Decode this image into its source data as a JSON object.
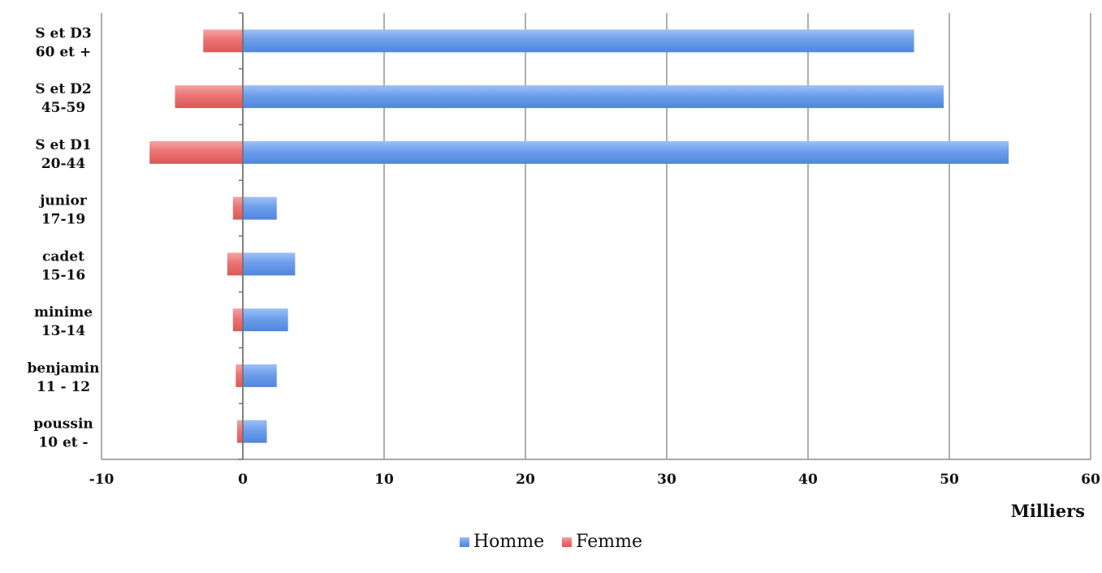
{
  "chart_data": {
    "type": "bar",
    "orientation": "horizontal",
    "stacked": true,
    "categories": [
      [
        "poussin",
        "10  et  -"
      ],
      [
        "benjamin",
        "11 - 12"
      ],
      [
        "minime",
        "13-14"
      ],
      [
        "cadet",
        "15-16"
      ],
      [
        "junior",
        "17-19"
      ],
      [
        "S et D1",
        "20-44"
      ],
      [
        "S et D2",
        "45-59"
      ],
      [
        "S et D3",
        "60 et +"
      ]
    ],
    "series": [
      {
        "name": "Homme",
        "color": "#6d9eeb",
        "values": [
          1.7,
          2.4,
          3.2,
          3.7,
          2.4,
          54.2,
          49.6,
          47.5
        ]
      },
      {
        "name": "Femme",
        "color": "#ec7373",
        "values": [
          -0.4,
          -0.5,
          -0.7,
          -1.1,
          -0.7,
          -6.6,
          -4.8,
          -2.8
        ]
      }
    ],
    "xlim": [
      -10,
      60
    ],
    "xticks": [
      "-10",
      "0",
      "10",
      "20",
      "30",
      "40",
      "50",
      "60"
    ],
    "xlabel": "Milliers",
    "grid": true,
    "legend_position": "bottom"
  }
}
